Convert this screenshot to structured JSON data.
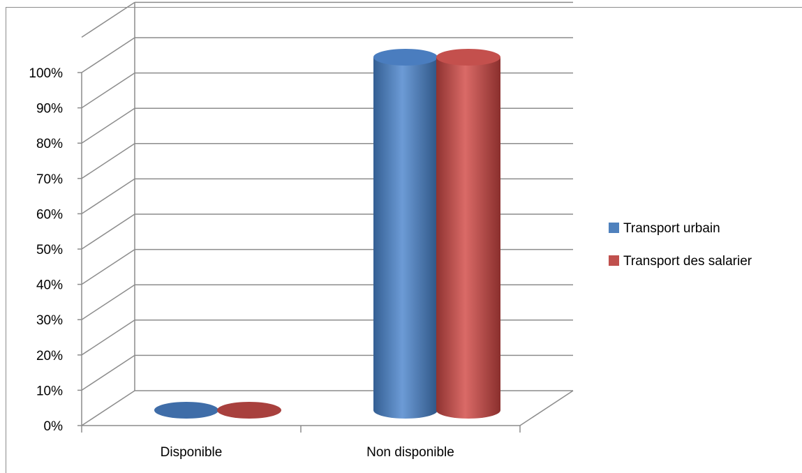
{
  "chart_data": {
    "type": "bar",
    "style": "3d-cylinder",
    "categories": [
      "Disponible",
      "Non disponible"
    ],
    "series": [
      {
        "name": "Transport urbain",
        "values": [
          0,
          100
        ],
        "color": "#4f81bd"
      },
      {
        "name": "Transport des salarier",
        "values": [
          0,
          100
        ],
        "color": "#c0504d"
      }
    ],
    "y_ticks": [
      "0%",
      "10%",
      "20%",
      "30%",
      "40%",
      "50%",
      "60%",
      "70%",
      "80%",
      "90%",
      "100%"
    ],
    "ylim": [
      0,
      100
    ],
    "title": "",
    "xlabel": "",
    "ylabel": "",
    "grid": true,
    "legend_position": "right"
  }
}
